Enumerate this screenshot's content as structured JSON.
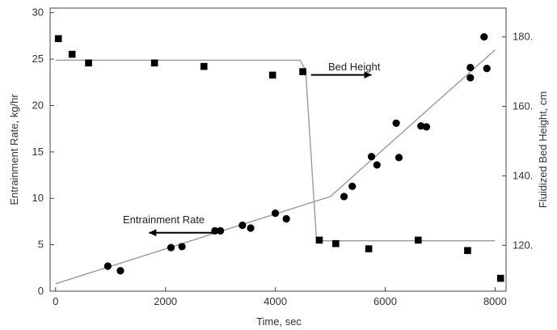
{
  "chart_data": {
    "type": "scatter",
    "title": "",
    "xlabel": "Time, sec",
    "ylabel": "Entrainment Rate, kg/hr",
    "y2label": "Fluidized Bed Height, cm",
    "xlim": [
      -100,
      8200
    ],
    "ylim": [
      0,
      30.5
    ],
    "y2lim": [
      106.8,
      188.3
    ],
    "x_ticks": [
      0,
      2000,
      4000,
      6000,
      8000
    ],
    "y_ticks": [
      0,
      5,
      10,
      15,
      20,
      25,
      30
    ],
    "y2_ticks": [
      120,
      140,
      160,
      180
    ],
    "x_tick_labels": [
      "0",
      "2000",
      "4000",
      "6000",
      "8000"
    ],
    "y_tick_labels": [
      "0",
      "5",
      "10",
      "15",
      "20",
      "25",
      "30"
    ],
    "y2_tick_labels": [
      "120.",
      "140.",
      "160.",
      "180."
    ],
    "grid": false,
    "colors": {
      "markers": "#000000",
      "fit_line": "#9a9a9a",
      "arrow": "#000000"
    },
    "series": [
      {
        "axis": "left",
        "marker": "circle",
        "points": [
          [
            950,
            2.7
          ],
          [
            1180,
            2.2
          ],
          [
            2100,
            4.7
          ],
          [
            2300,
            4.8
          ],
          [
            2900,
            6.5
          ],
          [
            3000,
            6.5
          ],
          [
            3400,
            7.1
          ],
          [
            3550,
            6.8
          ],
          [
            4000,
            8.4
          ],
          [
            4200,
            7.8
          ],
          [
            5250,
            10.2
          ],
          [
            5400,
            11.3
          ],
          [
            5750,
            14.5
          ],
          [
            5850,
            13.6
          ],
          [
            6200,
            18.1
          ],
          [
            6250,
            14.4
          ],
          [
            6650,
            17.8
          ],
          [
            6750,
            17.7
          ],
          [
            7550,
            24.1
          ],
          [
            7550,
            23.0
          ],
          [
            7800,
            27.4
          ],
          [
            7850,
            24.0
          ]
        ]
      },
      {
        "axis": "right",
        "marker": "square",
        "points": [
          [
            50,
            179.5
          ],
          [
            300,
            175.0
          ],
          [
            600,
            172.5
          ],
          [
            1800,
            172.5
          ],
          [
            2700,
            171.5
          ],
          [
            3950,
            169.0
          ],
          [
            4500,
            170.0
          ],
          [
            4800,
            121.5
          ],
          [
            5100,
            120.5
          ],
          [
            5700,
            119.0
          ],
          [
            6600,
            121.5
          ],
          [
            7500,
            118.5
          ],
          [
            8100,
            110.5
          ]
        ]
      }
    ],
    "fit_lines": [
      {
        "axis": "left",
        "points": [
          [
            0,
            0.8
          ],
          [
            5000,
            10.2
          ],
          [
            8000,
            26.0
          ]
        ]
      },
      {
        "axis": "right",
        "points": [
          [
            0,
            173.3
          ],
          [
            4450,
            173.3
          ],
          [
            4550,
            170.5
          ],
          [
            4750,
            121.3
          ],
          [
            8000,
            121.3
          ]
        ]
      }
    ],
    "annotations": [
      {
        "text": "Bed Height",
        "arrow_from": [
          4650,
          23.3
        ],
        "arrow_to": [
          5750,
          23.3
        ],
        "direction": "right"
      },
      {
        "text": "Entrainment Rate",
        "arrow_from": [
          3050,
          6.3
        ],
        "arrow_to": [
          1700,
          6.3
        ],
        "direction": "left"
      }
    ]
  }
}
